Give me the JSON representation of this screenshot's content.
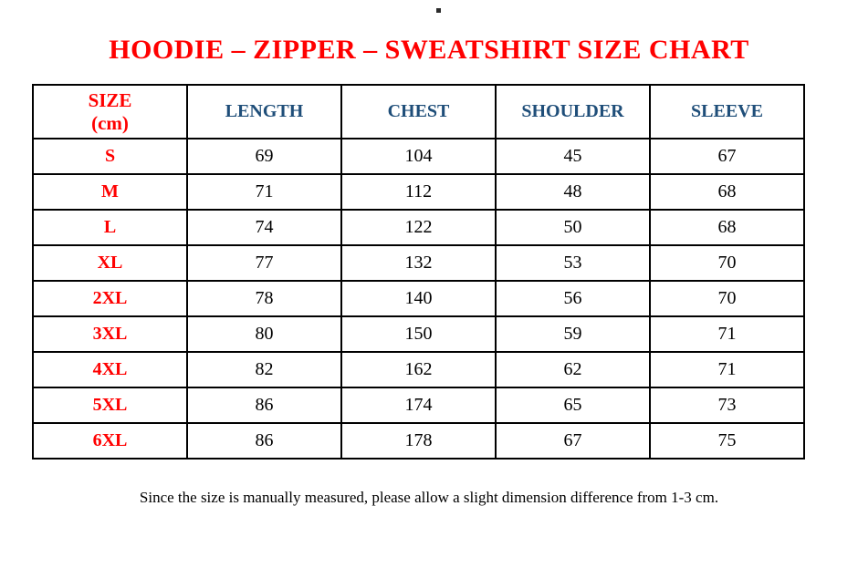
{
  "title": "HOODIE – ZIPPER – SWEATSHIRT SIZE CHART",
  "table": {
    "size_header": {
      "line1": "SIZE",
      "line2": "(cm)"
    },
    "headers": [
      "SIZE (cm)",
      "LENGTH",
      "CHEST",
      "SHOULDER",
      "SLEEVE"
    ],
    "rows": [
      [
        "S",
        "69",
        "104",
        "45",
        "67"
      ],
      [
        "M",
        "71",
        "112",
        "48",
        "68"
      ],
      [
        "L",
        "74",
        "122",
        "50",
        "68"
      ],
      [
        "XL",
        "77",
        "132",
        "53",
        "70"
      ],
      [
        "2XL",
        "78",
        "140",
        "56",
        "70"
      ],
      [
        "3XL",
        "80",
        "150",
        "59",
        "71"
      ],
      [
        "4XL",
        "82",
        "162",
        "62",
        "71"
      ],
      [
        "5XL",
        "86",
        "174",
        "65",
        "73"
      ],
      [
        "6XL",
        "86",
        "178",
        "67",
        "75"
      ]
    ]
  },
  "footer_note": "Since the size is manually measured, please allow a slight dimension difference from 1-3 cm.",
  "colors": {
    "accent_red": "#ff0000",
    "header_blue": "#1f4e79",
    "text_black": "#000000",
    "border_black": "#000000"
  }
}
